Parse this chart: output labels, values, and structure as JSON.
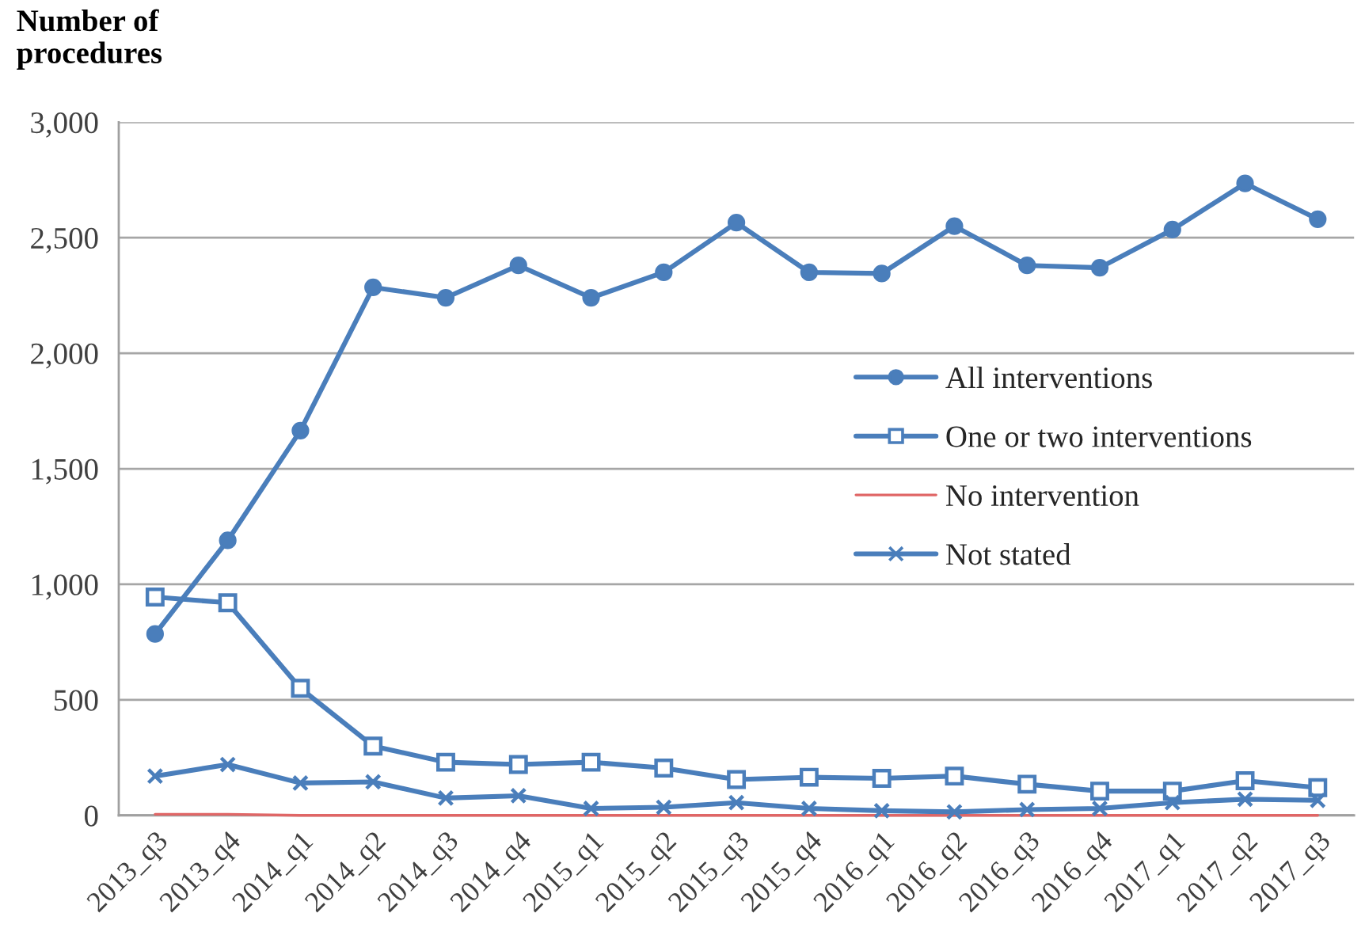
{
  "chart_data": {
    "type": "line",
    "ylabel": "Number of\nprocedures",
    "categories": [
      "2013_q3",
      "2013_q4",
      "2014_q1",
      "2014_q2",
      "2014_q3",
      "2014_q4",
      "2015_q1",
      "2015_q2",
      "2015_q3",
      "2015_q4",
      "2016_q1",
      "2016_q2",
      "2016_q3",
      "2016_q4",
      "2017_q1",
      "2017_q2",
      "2017_q3"
    ],
    "series": [
      {
        "name": "All interventions",
        "color": "#4a7ebb",
        "marker": "circle",
        "values": [
          785,
          1190,
          1665,
          2285,
          2240,
          2380,
          2240,
          2350,
          2565,
          2350,
          2345,
          2550,
          2380,
          2370,
          2535,
          2735,
          2580
        ]
      },
      {
        "name": "One or two interventions",
        "color": "#4a7ebb",
        "marker": "square",
        "values": [
          945,
          920,
          550,
          300,
          230,
          220,
          230,
          205,
          155,
          165,
          160,
          170,
          135,
          105,
          105,
          150,
          120
        ]
      },
      {
        "name": "No intervention",
        "color": "#e06666",
        "marker": "none",
        "values": [
          5,
          5,
          0,
          0,
          0,
          0,
          0,
          0,
          0,
          0,
          0,
          0,
          0,
          0,
          0,
          0,
          0
        ]
      },
      {
        "name": "Not stated",
        "color": "#4a7ebb",
        "marker": "cross",
        "values": [
          170,
          220,
          140,
          145,
          75,
          85,
          30,
          35,
          55,
          30,
          20,
          15,
          25,
          30,
          55,
          70,
          65
        ]
      }
    ],
    "ylim": [
      0,
      3000
    ],
    "yticks": [
      {
        "value": 0,
        "label": "0"
      },
      {
        "value": 500,
        "label": "500"
      },
      {
        "value": 1000,
        "label": "1,000"
      },
      {
        "value": 1500,
        "label": "1,500"
      },
      {
        "value": 2000,
        "label": "2,000"
      },
      {
        "value": 2500,
        "label": "2,500"
      },
      {
        "value": 3000,
        "label": "3,000"
      }
    ],
    "grid": "y",
    "legend": "right"
  }
}
